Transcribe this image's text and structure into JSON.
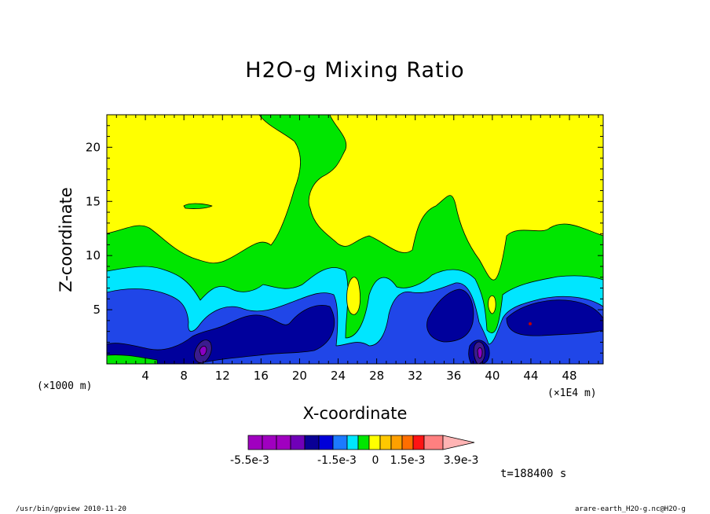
{
  "chart_data": {
    "type": "heatmap",
    "title": "H2O-g Mixing Ratio",
    "xlabel": "X-coordinate",
    "ylabel": "Z-coordinate",
    "x_unit": "(×1000 m)",
    "x_unit_right": "(×1E4 m)",
    "x_ticks": [
      "4",
      "8",
      "12",
      "16",
      "20",
      "24",
      "28",
      "32",
      "36",
      "40",
      "44",
      "48"
    ],
    "y_ticks": [
      "5",
      "10",
      "15",
      "20"
    ],
    "xlim": [
      0,
      51.5
    ],
    "ylim": [
      0,
      23
    ],
    "time_label": "t=188400 s",
    "colorbar": {
      "labels": [
        "-5.5e-3",
        "-1.5e-3",
        "0",
        "1.5e-3",
        "3.9e-3"
      ],
      "colors": [
        "#a000c0",
        "#a000c0",
        "#a000c0",
        "#7000b8",
        "#0a0096",
        "#0000d8",
        "#1c7aff",
        "#00e6ff",
        "#00e600",
        "#ffff00",
        "#ffc800",
        "#ffa000",
        "#ff6e00",
        "#ff1414",
        "#ff8080",
        "#ffb4b4"
      ]
    },
    "levels": [
      "dark-purple",
      "indigo",
      "dark-blue",
      "blue",
      "cyan",
      "green",
      "yellow"
    ]
  },
  "footer": {
    "left": "/usr/bin/gpview  2010-11-20",
    "right": "arare-earth_H2O-g.nc@H2O-g"
  },
  "colors": {
    "yellow": "#ffff00",
    "green": "#00e600",
    "cyan": "#00e6ff",
    "blue": "#1c4ae8",
    "darkblue": "#0000a0",
    "indigo": "#3c1a8c",
    "purple": "#8a00c4"
  }
}
